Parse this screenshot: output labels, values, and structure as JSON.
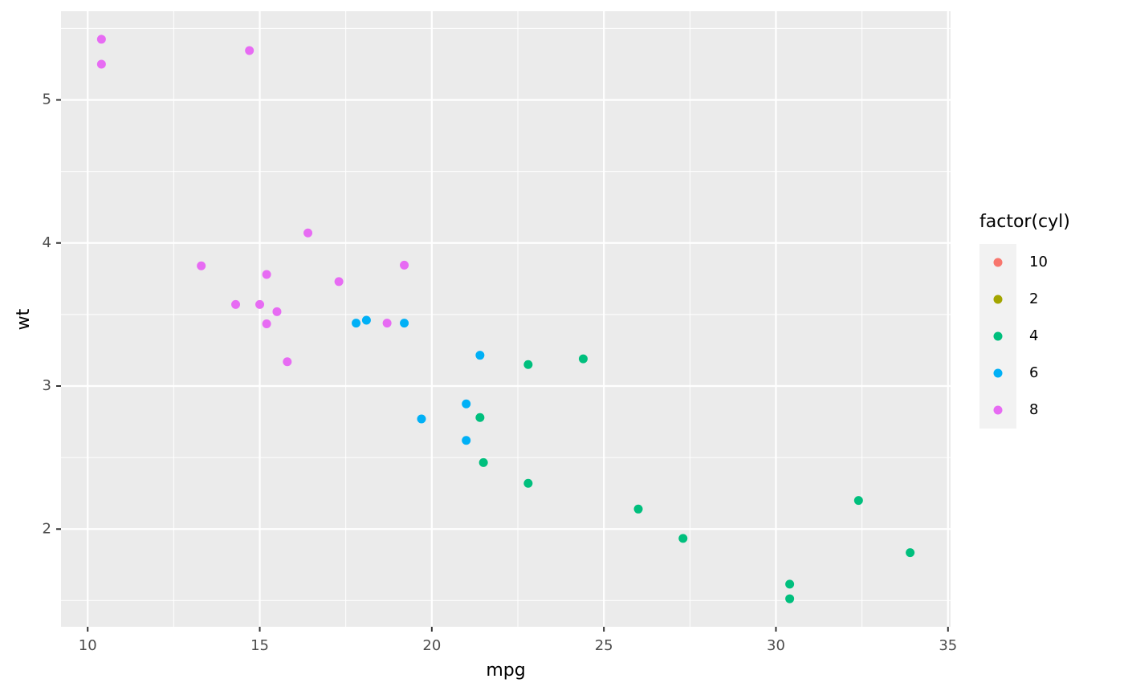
{
  "chart_data": {
    "type": "scatter",
    "x_label": "mpg",
    "y_label": "wt",
    "legend_title": "factor(cyl)",
    "legend": "right",
    "xlim": [
      9.225,
      35.075
    ],
    "ylim": [
      1.317,
      5.62
    ],
    "xticks": [
      10,
      15,
      20,
      25,
      30,
      35
    ],
    "yticks": [
      2,
      3,
      4,
      5
    ],
    "xminor": [
      12.5,
      17.5,
      22.5,
      27.5,
      32.5
    ],
    "yminor": [
      1.5,
      2.5,
      3.5,
      4.5,
      5.5
    ],
    "grid": true,
    "series": [
      {
        "name": "10",
        "color": "#F8766D",
        "x": [],
        "values": []
      },
      {
        "name": "2",
        "color": "#A3A500",
        "x": [],
        "values": []
      },
      {
        "name": "4",
        "color": "#00BF7D",
        "x": [
          22.8,
          24.4,
          22.8,
          32.4,
          30.4,
          33.9,
          21.5,
          27.3,
          26,
          30.4,
          21.4
        ],
        "values": [
          2.32,
          3.19,
          3.15,
          2.2,
          1.615,
          1.835,
          2.465,
          1.935,
          2.14,
          1.513,
          2.78
        ]
      },
      {
        "name": "6",
        "color": "#00B0F6",
        "x": [
          21,
          21,
          21.4,
          18.1,
          19.2,
          17.8,
          19.7
        ],
        "values": [
          2.62,
          2.875,
          3.215,
          3.46,
          3.44,
          3.44,
          2.77
        ]
      },
      {
        "name": "8",
        "color": "#E76BF3",
        "x": [
          18.7,
          14.3,
          16.4,
          17.3,
          15.2,
          10.4,
          10.4,
          14.7,
          15.5,
          15.2,
          13.3,
          19.2,
          15.8,
          15
        ],
        "values": [
          3.44,
          3.57,
          4.07,
          3.73,
          3.78,
          5.25,
          5.424,
          5.345,
          3.52,
          3.435,
          3.84,
          3.845,
          3.17,
          3.57
        ]
      }
    ]
  }
}
